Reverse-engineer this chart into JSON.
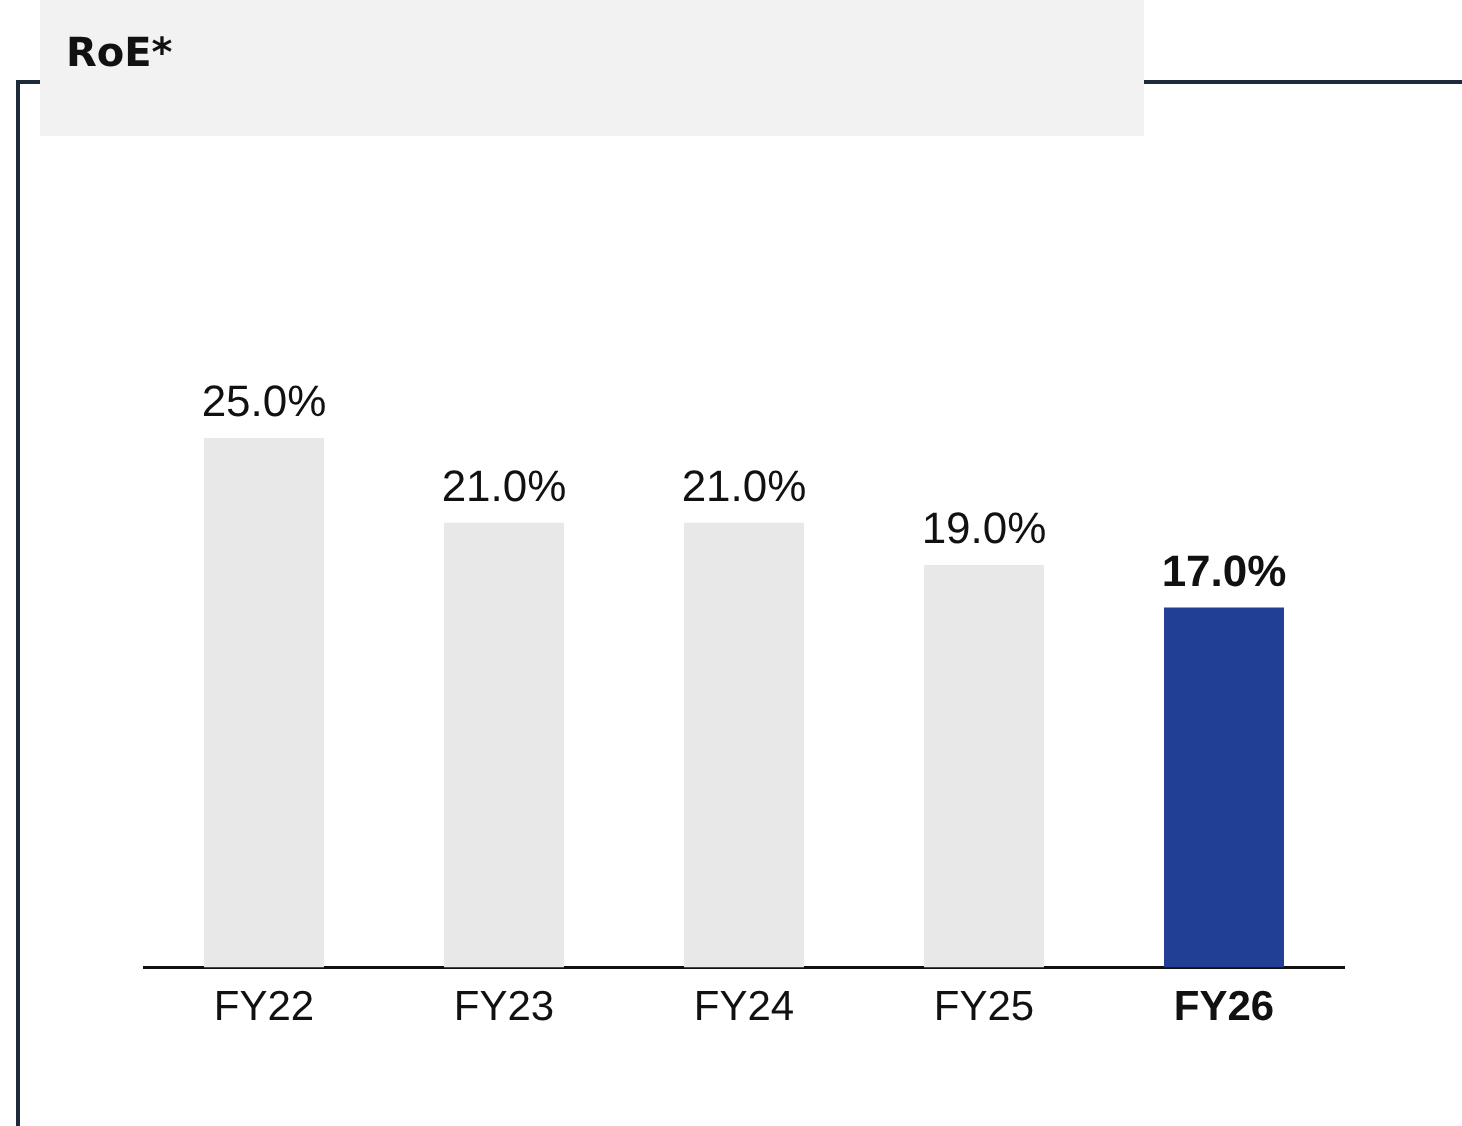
{
  "chart_data": {
    "type": "bar",
    "title": "RoE*",
    "categories": [
      "FY22",
      "FY23",
      "FY24",
      "FY25",
      "FY26"
    ],
    "values": [
      25,
      21,
      21,
      19,
      17
    ],
    "value_labels": [
      "25.0%",
      "21.0%",
      "21.0%",
      "19.0%",
      "17.0%"
    ],
    "colors": [
      "#e8e8e8",
      "#e8e8e8",
      "#e8e8e8",
      "#e8e8e8",
      "#213f94"
    ],
    "grid": false,
    "legend": false
  }
}
